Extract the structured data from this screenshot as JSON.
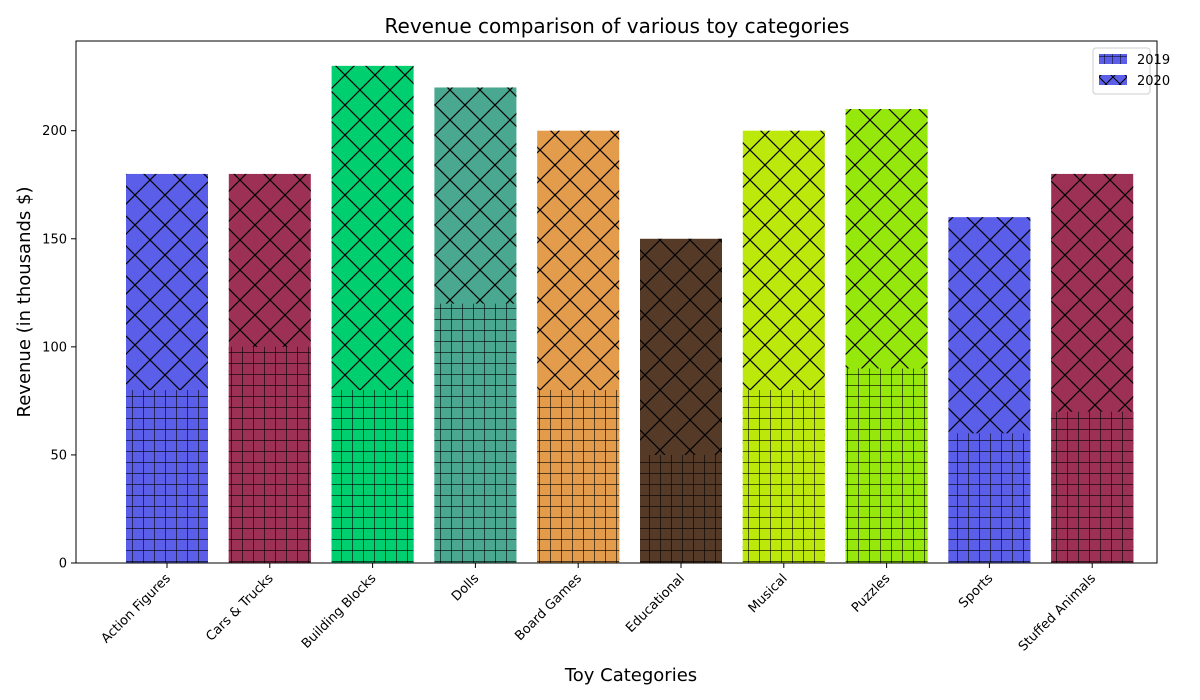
{
  "chart_data": {
    "type": "bar",
    "stacked": false,
    "overlapping": true,
    "title": "Revenue comparison of various toy categories",
    "xlabel": "Toy Categories",
    "ylabel": "Revenue (in thousands $)",
    "ylim": [
      0,
      241.5
    ],
    "yticks": [
      0,
      50,
      100,
      150,
      200
    ],
    "grid": false,
    "legend_position": "top-right",
    "categories": [
      "Action Figures",
      "Cars & Trucks",
      "Building Blocks",
      "Dolls",
      "Board Games",
      "Educational",
      "Musical",
      "Puzzles",
      "Sports",
      "Stuffed Animals"
    ],
    "bar_colors": [
      "#5a5ee8",
      "#9c3055",
      "#00cf6f",
      "#4aa890",
      "#e39b4c",
      "#553a27",
      "#bde80c",
      "#96e80c",
      "#5a5ee8",
      "#9c3055"
    ],
    "series": [
      {
        "name": "2019",
        "hatch": "grid",
        "values": [
          80,
          100,
          80,
          120,
          80,
          50,
          80,
          90,
          60,
          70
        ]
      },
      {
        "name": "2020",
        "hatch": "diagonal-cross",
        "values": [
          180,
          180,
          230,
          220,
          200,
          150,
          200,
          210,
          160,
          180
        ]
      }
    ],
    "legend_color": "#5a5ee8"
  }
}
